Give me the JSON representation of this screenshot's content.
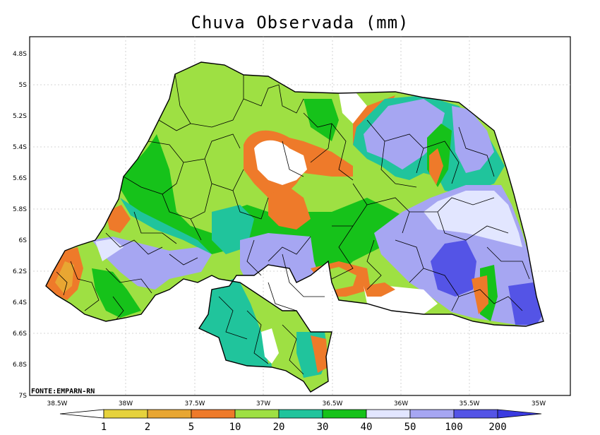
{
  "title": "Chuva Observada (mm)",
  "source": "FONTE:EMPARN-RN",
  "axes": {
    "lat_labels": [
      "4.8S",
      "5S",
      "5.2S",
      "5.4S",
      "5.6S",
      "5.8S",
      "6S",
      "6.2S",
      "6.4S",
      "6.6S",
      "6.8S",
      "7S"
    ],
    "lon_labels": [
      "38.5W",
      "38W",
      "37.5W",
      "37W",
      "36.5W",
      "36W",
      "35.5W",
      "35W"
    ]
  },
  "colorbar": {
    "labels": [
      "1",
      "2",
      "5",
      "10",
      "20",
      "30",
      "40",
      "50",
      "100",
      "200"
    ],
    "colors": [
      "#e6d23c",
      "#e8a632",
      "#ee7a2a",
      "#9ee043",
      "#20c49c",
      "#16c21a",
      "#e2e6ff",
      "#a6a6f2",
      "#5454e6"
    ]
  },
  "palette": {
    "white": "#ffffff",
    "yellow": "#e6d23c",
    "orange": "#ee7a2a",
    "light_green": "#9ee043",
    "teal": "#20c49c",
    "green": "#16c21a",
    "pale_blue": "#e2e6ff",
    "lavender": "#a6a6f2",
    "blue": "#5454e6"
  }
}
